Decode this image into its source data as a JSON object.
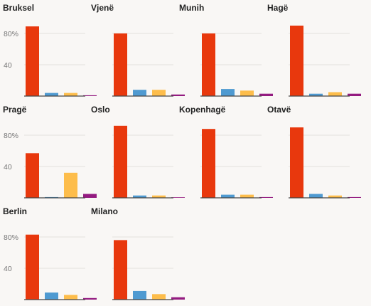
{
  "chart_data": {
    "type": "bar",
    "ylim": [
      0,
      100
    ],
    "yticks": [
      {
        "value": 40,
        "label": "40"
      },
      {
        "value": 80,
        "label": "80%"
      }
    ],
    "grid": true,
    "series_colors": [
      "#e8380d",
      "#4f9ad1",
      "#fdbd4b",
      "#941b80"
    ],
    "panels": [
      {
        "title": "Bruksel",
        "values": [
          89,
          4,
          4,
          1
        ]
      },
      {
        "title": "Vjenë",
        "values": [
          80,
          8,
          8,
          2
        ]
      },
      {
        "title": "Munih",
        "values": [
          80,
          9,
          7,
          3
        ]
      },
      {
        "title": "Hagë",
        "values": [
          90,
          3,
          5,
          3
        ]
      },
      {
        "title": "Pragë",
        "values": [
          57,
          1,
          32,
          5
        ]
      },
      {
        "title": "Oslo",
        "values": [
          92,
          3,
          3,
          0
        ]
      },
      {
        "title": "Kopenhagë",
        "values": [
          88,
          4,
          4,
          1
        ]
      },
      {
        "title": "Otavë",
        "values": [
          90,
          5,
          3,
          1
        ]
      },
      {
        "title": "Berlin",
        "values": [
          83,
          9,
          6,
          2
        ]
      },
      {
        "title": "Milano",
        "values": [
          76,
          11,
          7,
          3
        ]
      }
    ]
  }
}
